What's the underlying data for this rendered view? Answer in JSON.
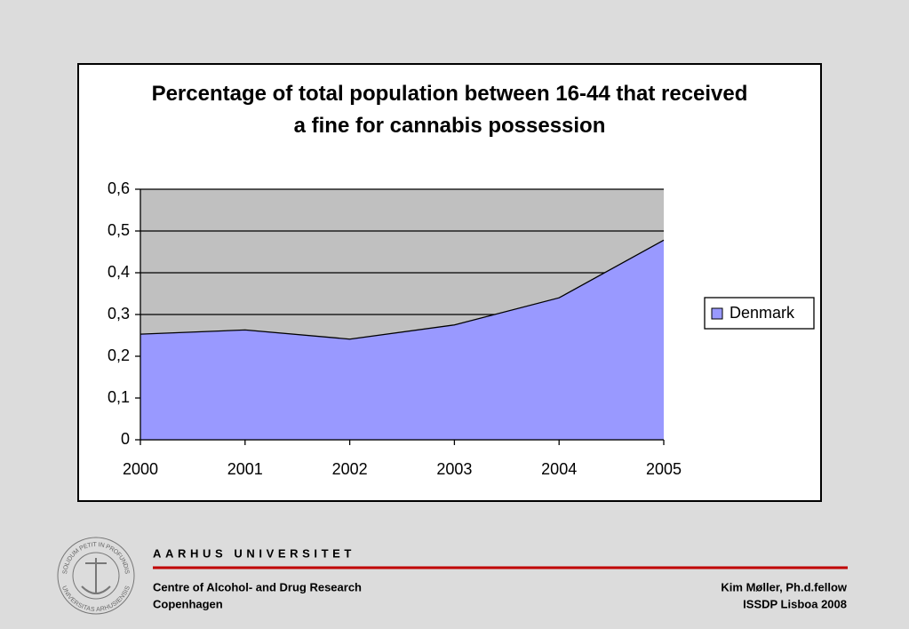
{
  "chart_data": {
    "type": "area",
    "title": "Percentage of total population between 16-44 that received a fine for cannabis possession",
    "x": [
      2000,
      2001,
      2002,
      2003,
      2004,
      2005
    ],
    "xlim": [
      2000,
      2005
    ],
    "xticks": [
      2000,
      2001,
      2002,
      2003,
      2004,
      2005
    ],
    "series": [
      {
        "name": "Denmark",
        "color": "#9999ff",
        "values": [
          0.253,
          0.263,
          0.241,
          0.275,
          0.34,
          0.478
        ]
      }
    ],
    "ylim": [
      0,
      0.6
    ],
    "yticks": [
      0,
      {
        "value": 0.1,
        "label": "0,1"
      },
      {
        "value": 0.2,
        "label": "0,2"
      },
      {
        "value": 0.3,
        "label": "0,3"
      },
      {
        "value": 0.4,
        "label": "0,4"
      },
      {
        "value": 0.5,
        "label": "0,5"
      },
      {
        "value": 0.6,
        "label": "0,6"
      }
    ],
    "grid": true,
    "legend": "right"
  },
  "footer": {
    "university": "AARHUS UNIVERSITET",
    "seal_top": "SOLIDUM PETIT IN PROFUNDIS",
    "seal_bottom": "UNIVERSITAS ARHUSIENSIS",
    "left": [
      "Centre of Alcohol- and Drug Research",
      "Copenhagen"
    ],
    "right": [
      "Kim Møller, Ph.d.fellow",
      "ISSDP Lisboa 2008"
    ]
  }
}
